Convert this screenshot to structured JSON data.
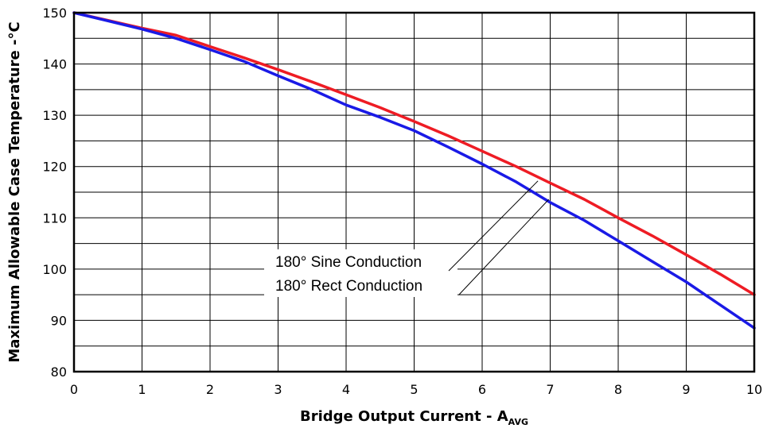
{
  "chart_data": {
    "type": "line",
    "xlabel": "Bridge Output Current - A",
    "xlabel_sub": "AVG",
    "ylabel": "Maximum Allowable Case Temperature -°C",
    "xlim": [
      0,
      10
    ],
    "ylim": [
      80,
      150
    ],
    "x_ticks": [
      0,
      1,
      2,
      3,
      4,
      5,
      6,
      7,
      8,
      9,
      10
    ],
    "y_ticks": [
      80,
      90,
      100,
      110,
      120,
      130,
      140,
      150
    ],
    "grid": true,
    "series": [
      {
        "name": "180° Sine Conduction",
        "color": "#ee1c24",
        "x": [
          0,
          1,
          1.5,
          2,
          2.5,
          3,
          3.5,
          4,
          4.5,
          5,
          5.5,
          6,
          6.5,
          7,
          7.5,
          8,
          8.5,
          9,
          9.5,
          10
        ],
        "y": [
          150,
          147,
          145.6,
          143.4,
          141.2,
          138.9,
          136.5,
          134,
          131.5,
          128.8,
          126,
          123,
          120,
          116.8,
          113.6,
          110,
          106.5,
          102.8,
          99,
          95
        ]
      },
      {
        "name": "180° Rect Conduction",
        "color": "#1a1ae6",
        "x": [
          0,
          1,
          1.5,
          2,
          2.5,
          3,
          3.5,
          4,
          4.5,
          5,
          5.5,
          6,
          6.5,
          7,
          7.5,
          8,
          8.5,
          9,
          9.5,
          10
        ],
        "y": [
          150,
          146.8,
          145,
          142.8,
          140.5,
          137.7,
          135,
          132,
          129.6,
          127,
          123.8,
          120.5,
          117,
          113,
          109.5,
          105.5,
          101.5,
          97.5,
          93,
          88.5
        ]
      }
    ],
    "annotations": [
      {
        "text": "180° Sine Conduction",
        "points_to": "180° Sine Conduction",
        "target": [
          6.82,
          117.2
        ]
      },
      {
        "text": "180° Rect Conduction",
        "points_to": "180° Rect Conduction",
        "target": [
          6.98,
          113.6
        ]
      }
    ]
  }
}
